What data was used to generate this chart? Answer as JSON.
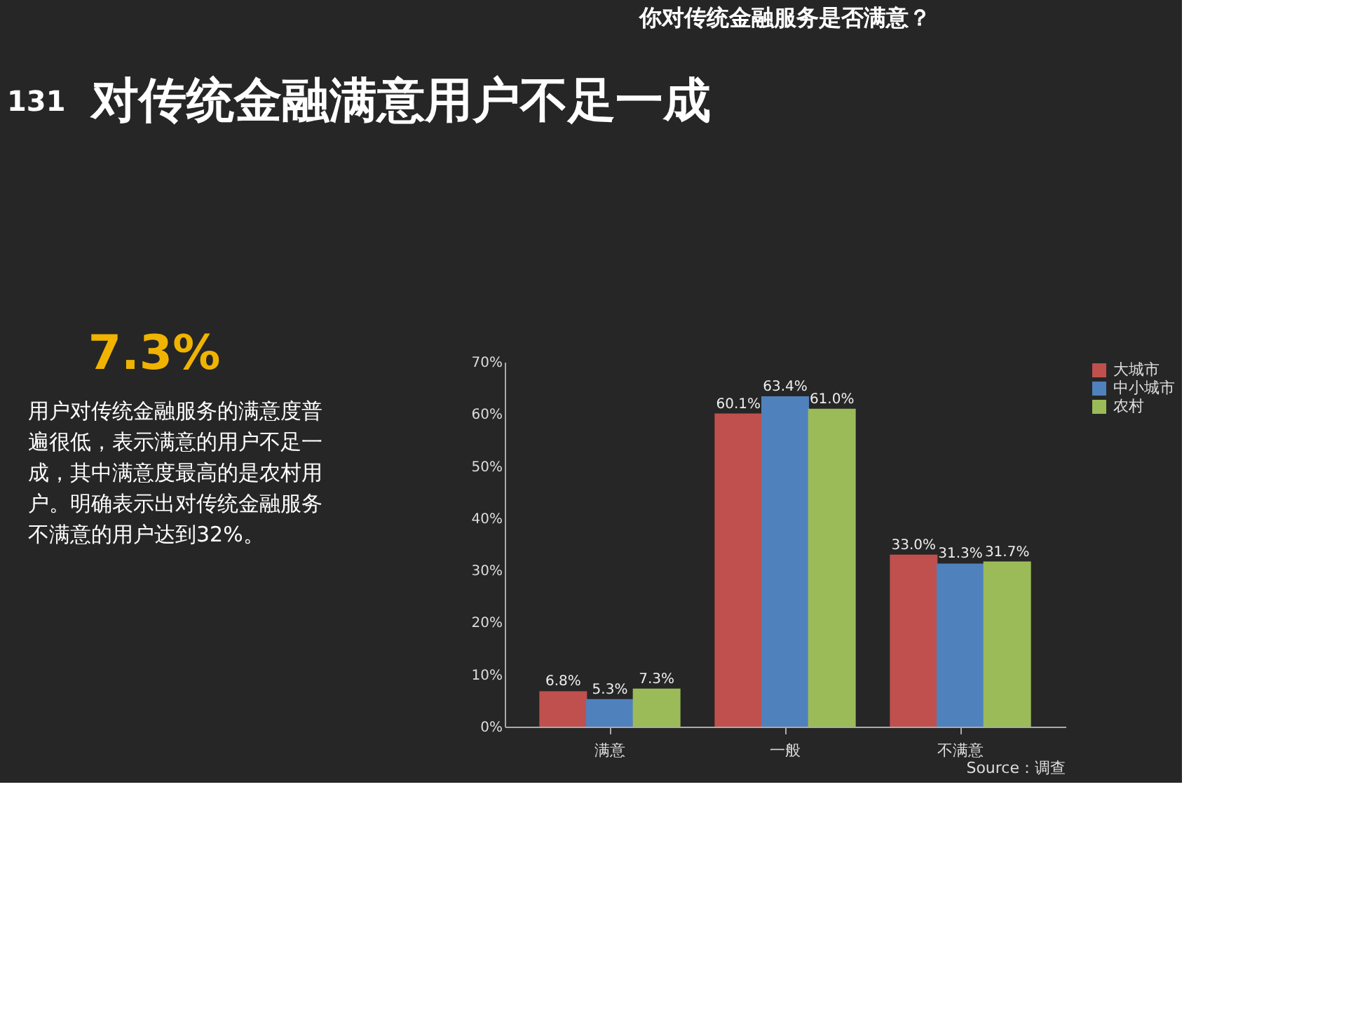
{
  "chart_data": {
    "type": "bar",
    "title": "你对传统金融服务是否满意？",
    "categories": [
      "满意",
      "一般",
      "不满意"
    ],
    "series": [
      {
        "name": "大城市",
        "color": "#c0504d",
        "values": [
          6.8,
          60.1,
          33.0
        ],
        "value_labels": [
          "6.8%",
          "60.1%",
          "33.0%"
        ]
      },
      {
        "name": "中小城市",
        "color": "#4f81bd",
        "values": [
          5.3,
          63.4,
          31.3
        ],
        "value_labels": [
          "5.3%",
          "63.4%",
          "31.3%"
        ]
      },
      {
        "name": "农村",
        "color": "#9bbb59",
        "values": [
          7.3,
          61.0,
          31.7
        ],
        "value_labels": [
          "7.3%",
          "61.0%",
          "31.7%"
        ]
      }
    ],
    "ylim": [
      0,
      70
    ],
    "yticks": [
      {
        "value": 0,
        "label": "0%"
      },
      {
        "value": 10,
        "label": "10%"
      },
      {
        "value": 20,
        "label": "20%"
      },
      {
        "value": 30,
        "label": "30%"
      },
      {
        "value": 40,
        "label": "40%"
      },
      {
        "value": 50,
        "label": "50%"
      },
      {
        "value": 60,
        "label": "60%"
      },
      {
        "value": 70,
        "label": "70%"
      }
    ],
    "grid": false,
    "legend": "right",
    "annotations": [
      "131",
      "对传统金融满意用户不足一成",
      "7.3%",
      "用户对传统金融服务的满意度普遍很低，表示满意的用户不足一成，其中满意度最高的是农村用户。明确表示出对传统金融服务不满意的用户达到32%。",
      "Source：调查"
    ]
  }
}
